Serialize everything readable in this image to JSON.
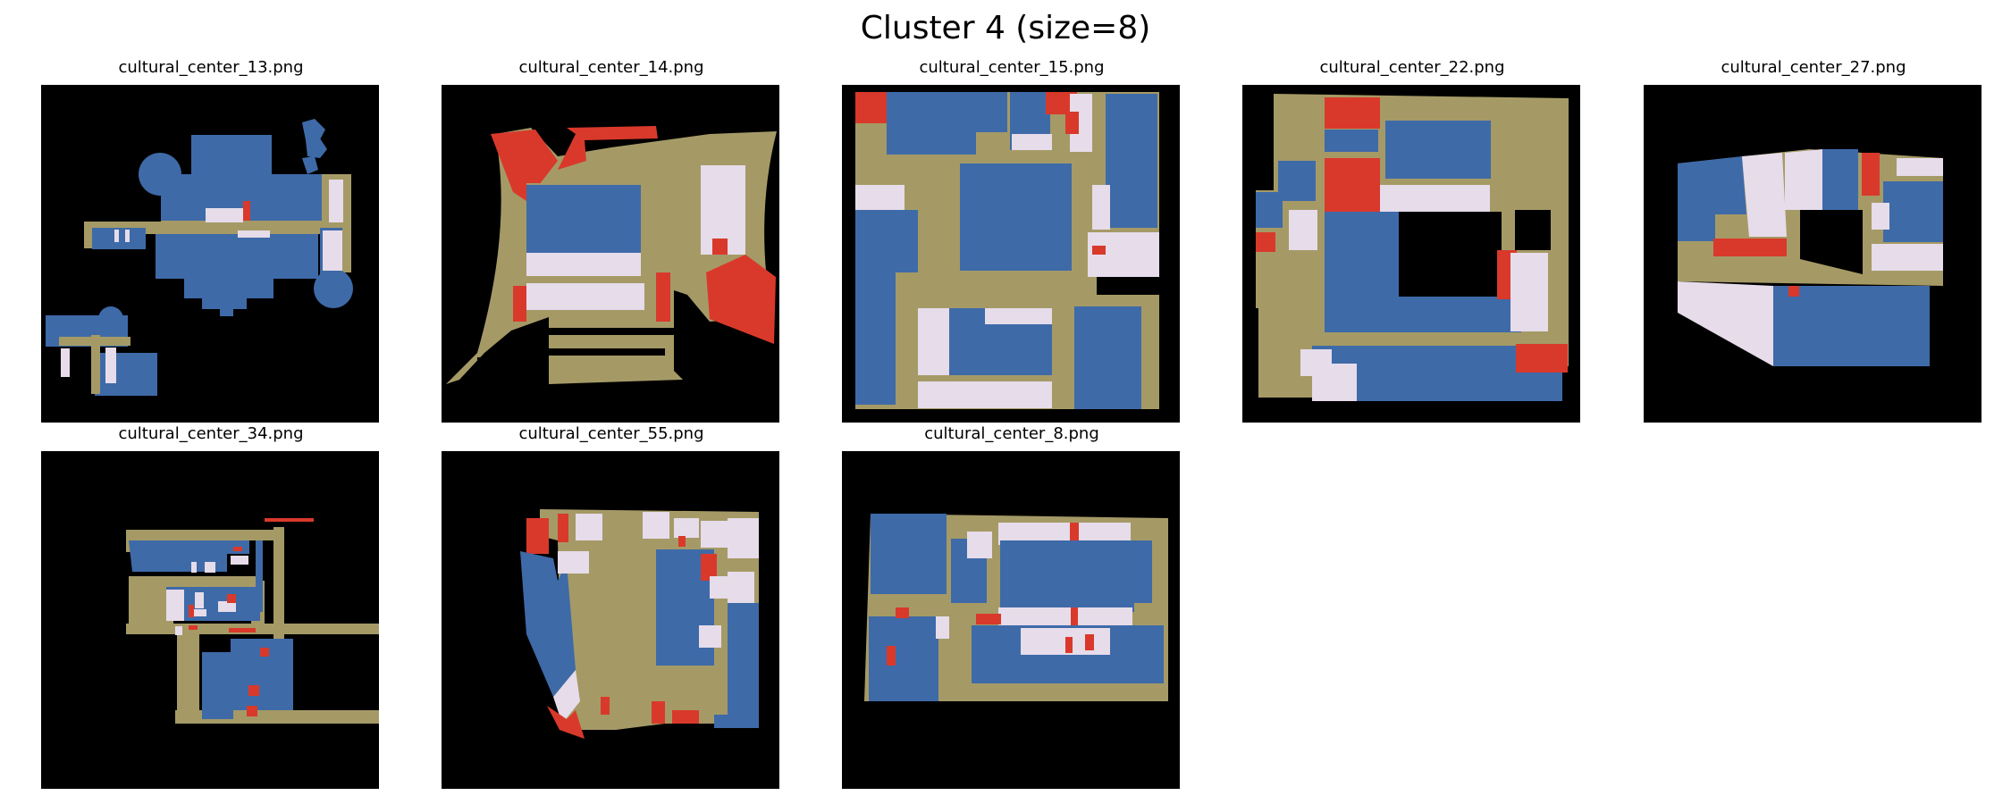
{
  "title": "Cluster 4 (size=8)",
  "colors": {
    "background": "#000000",
    "corridor": "#a59a66",
    "room_blue": "#3e6aa8",
    "room_light": "#e6dcea",
    "room_red": "#d9392b"
  },
  "images": [
    {
      "filename": "cultural_center_13.png"
    },
    {
      "filename": "cultural_center_14.png"
    },
    {
      "filename": "cultural_center_15.png"
    },
    {
      "filename": "cultural_center_22.png"
    },
    {
      "filename": "cultural_center_27.png"
    },
    {
      "filename": "cultural_center_34.png"
    },
    {
      "filename": "cultural_center_55.png"
    },
    {
      "filename": "cultural_center_8.png"
    }
  ]
}
